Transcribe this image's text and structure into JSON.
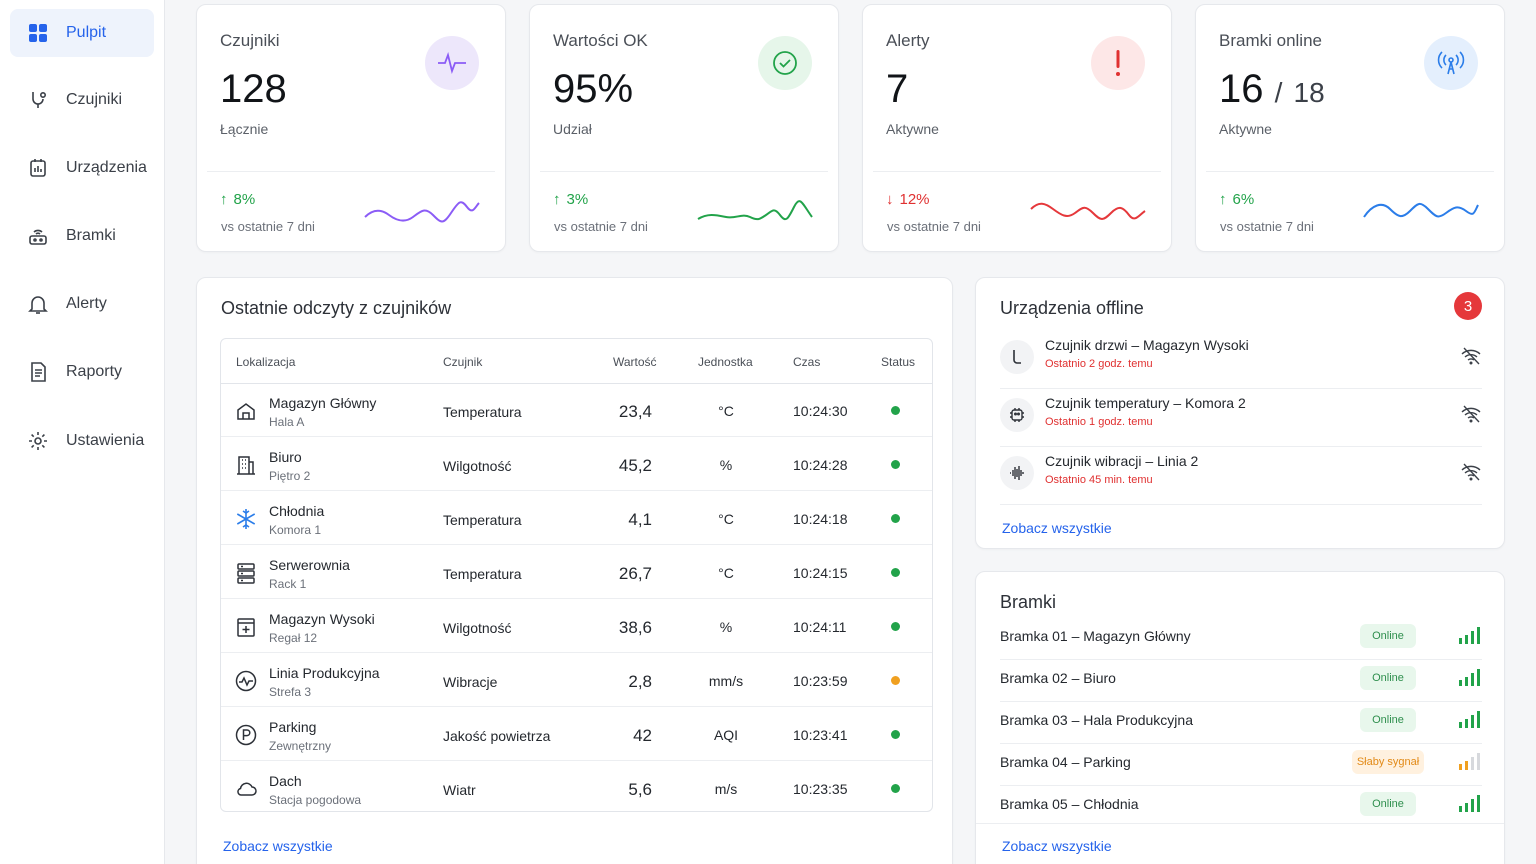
{
  "nav": {
    "items": [
      {
        "label": "Pulpit",
        "icon": "dashboard-icon",
        "active": true
      },
      {
        "label": "Czujniki",
        "icon": "sensor-icon",
        "active": false
      },
      {
        "label": "Urządzenia",
        "icon": "device-icon",
        "active": false
      },
      {
        "label": "Bramki",
        "icon": "gateway-icon",
        "active": false
      },
      {
        "label": "Alerty",
        "icon": "bell-icon",
        "active": false
      },
      {
        "label": "Raporty",
        "icon": "report-icon",
        "active": false
      },
      {
        "label": "Ustawienia",
        "icon": "gear-icon",
        "active": false
      }
    ]
  },
  "stats": [
    {
      "title": "Czujniki",
      "value": "128",
      "sub": "Łącznie",
      "trend": "8%",
      "trend_dir": "up",
      "trend_note": "vs ostatnie 7 dni",
      "icon": "activity-icon",
      "color": "#8b5cf6"
    },
    {
      "title": "Wartości OK",
      "value": "95%",
      "sub": "Udział",
      "trend": "3%",
      "trend_dir": "up",
      "trend_note": "vs ostatnie 7 dni",
      "icon": "check-circle-icon",
      "color": "#22a34a"
    },
    {
      "title": "Alerty",
      "value": "7",
      "sub": "Aktywne",
      "trend": "12%",
      "trend_dir": "down",
      "trend_note": "vs ostatnie 7 dni",
      "icon": "exclamation-icon",
      "color": "#e03131"
    },
    {
      "title": "Bramki online",
      "value": "16",
      "value_total": "18",
      "sub": "Aktywne",
      "trend": "6%",
      "trend_dir": "up",
      "trend_note": "vs ostatnie 7 dni",
      "icon": "antenna-icon",
      "color": "#2b7de9"
    }
  ],
  "readings": {
    "title": "Ostatnie odczyty z czujników",
    "columns": [
      "Lokalizacja",
      "Czujnik",
      "Wartość",
      "Jednostka",
      "Czas",
      "Status"
    ],
    "rows": [
      {
        "name": "Magazyn Główny",
        "sub": "Hala A",
        "icon": "warehouse-icon",
        "sensor": "Temperatura",
        "value": "23,4",
        "unit": "°C",
        "time": "10:24:30",
        "status": "ok"
      },
      {
        "name": "Biuro",
        "sub": "Piętro 2",
        "icon": "building-icon",
        "sensor": "Wilgotność",
        "value": "45,2",
        "unit": "%",
        "time": "10:24:28",
        "status": "ok"
      },
      {
        "name": "Chłodnia",
        "sub": "Komora 1",
        "icon": "snowflake-icon",
        "sensor": "Temperatura",
        "value": "4,1",
        "unit": "°C",
        "time": "10:24:18",
        "status": "ok"
      },
      {
        "name": "Serwerownia",
        "sub": "Rack 1",
        "icon": "server-icon",
        "sensor": "Temperatura",
        "value": "26,7",
        "unit": "°C",
        "time": "10:24:15",
        "status": "ok"
      },
      {
        "name": "Magazyn Wysoki",
        "sub": "Regał 12",
        "icon": "shelf-icon",
        "sensor": "Wilgotność",
        "value": "38,6",
        "unit": "%",
        "time": "10:24:11",
        "status": "ok"
      },
      {
        "name": "Linia Produkcyjna",
        "sub": "Strefa 3",
        "icon": "pulse-icon",
        "sensor": "Wibracje",
        "value": "2,8",
        "unit": "mm/s",
        "time": "10:23:59",
        "status": "warn"
      },
      {
        "name": "Parking",
        "sub": "Zewnętrzny",
        "icon": "parking-icon",
        "sensor": "Jakość powietrza",
        "value": "42",
        "unit": "AQI",
        "time": "10:23:41",
        "status": "ok"
      },
      {
        "name": "Dach",
        "sub": "Stacja pogodowa",
        "icon": "cloud-icon",
        "sensor": "Wiatr",
        "value": "5,6",
        "unit": "m/s",
        "time": "10:23:35",
        "status": "ok"
      }
    ],
    "link": "Zobacz wszystkie"
  },
  "offline": {
    "title": "Urządzenia offline",
    "count": "3",
    "items": [
      {
        "name": "Czujnik drzwi – Magazyn Wysoki",
        "sub": "Ostatnio 2 godz. temu",
        "icon": "door-sensor-icon"
      },
      {
        "name": "Czujnik temperatury – Komora 2",
        "sub": "Ostatnio 1 godz. temu",
        "icon": "chip-icon"
      },
      {
        "name": "Czujnik wibracji – Linia 2",
        "sub": "Ostatnio 45 min. temu",
        "icon": "waveform-icon"
      }
    ],
    "link": "Zobacz wszystkie"
  },
  "gateways": {
    "title": "Bramki",
    "items": [
      {
        "name": "Bramka 01 – Magazyn Główny",
        "status": "Online",
        "level": "ok"
      },
      {
        "name": "Bramka 02 – Biuro",
        "status": "Online",
        "level": "ok"
      },
      {
        "name": "Bramka 03 – Hala Produkcyjna",
        "status": "Online",
        "level": "ok"
      },
      {
        "name": "Bramka 04 – Parking",
        "status": "Słaby sygnał",
        "level": "weak"
      },
      {
        "name": "Bramka 05 – Chłodnia",
        "status": "Online",
        "level": "ok"
      }
    ],
    "link": "Zobacz wszystkie"
  },
  "colors": {
    "accent": "#2563eb",
    "ok": "#22a34a",
    "warn": "#f0a020",
    "alert": "#e03131"
  }
}
